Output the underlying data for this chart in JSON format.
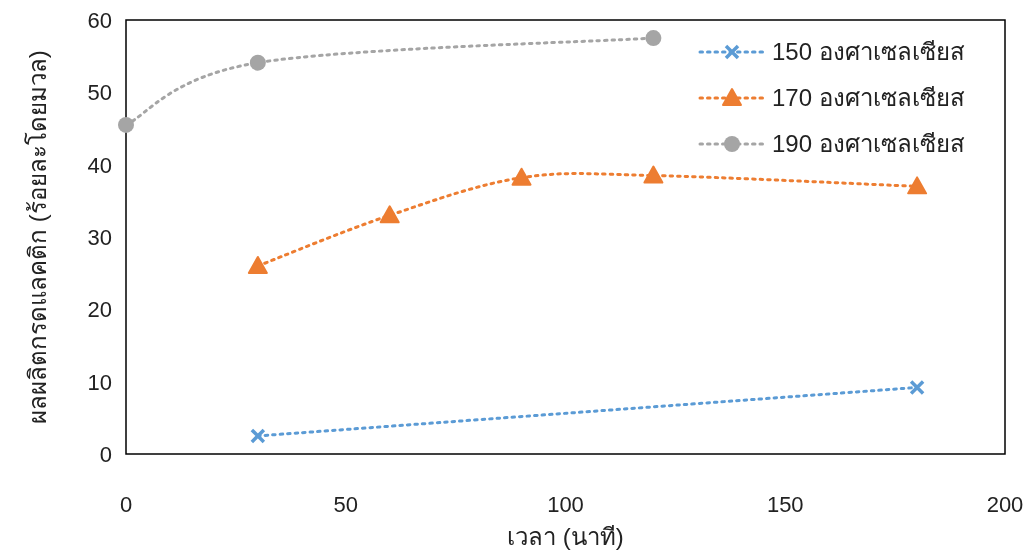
{
  "chart_data": {
    "type": "line",
    "xlabel": "เวลา (นาที)",
    "ylabel": "ผลผลิตกรดแลคติก (ร้อยละโดยมวล)",
    "xlim": [
      0,
      200
    ],
    "ylim": [
      0,
      60
    ],
    "xticks": [
      0,
      50,
      100,
      150,
      200
    ],
    "yticks": [
      0,
      10,
      20,
      30,
      40,
      50,
      60
    ],
    "legend": "top right",
    "series": [
      {
        "name": "150 องศาเซลเซียส",
        "color": "#5b9bd5",
        "marker": "cross",
        "line_style": "dotted",
        "x": [
          30,
          180
        ],
        "values": [
          2.5,
          9.2
        ]
      },
      {
        "name": "170 องศาเซลเซียส",
        "color": "#ed7d31",
        "marker": "triangle",
        "line_style": "dotted",
        "x": [
          30,
          60,
          90,
          120,
          180
        ],
        "values": [
          26,
          33,
          38.2,
          38.5,
          37
        ]
      },
      {
        "name": "190 องศาเซลเซียส",
        "color": "#a5a5a5",
        "marker": "circle",
        "line_style": "dotted",
        "x": [
          0,
          30,
          120
        ],
        "values": [
          45.5,
          54.1,
          57.5
        ]
      }
    ]
  }
}
